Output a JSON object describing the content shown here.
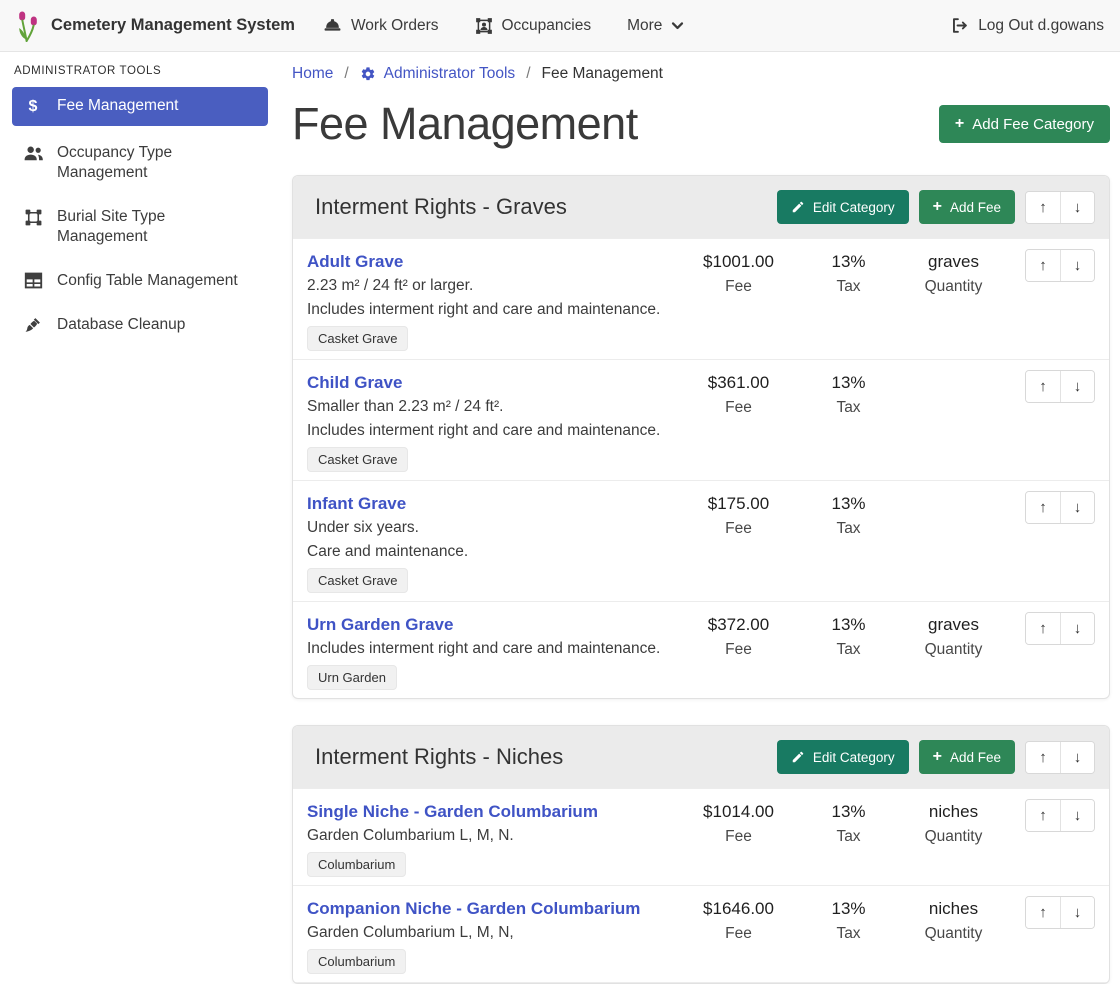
{
  "navbar": {
    "brand": "Cemetery Management System",
    "items": [
      {
        "label": "Work Orders",
        "icon": "hard-hat-icon"
      },
      {
        "label": "Occupancies",
        "icon": "occupant-frame-icon"
      },
      {
        "label": "More",
        "icon": "chevron-down-icon"
      }
    ],
    "logout": {
      "label": "Log Out d.gowans",
      "icon": "sign-out-icon"
    }
  },
  "sidebar": {
    "heading": "ADMINISTRATOR TOOLS",
    "items": [
      {
        "label": "Fee Management",
        "icon": "dollar-icon",
        "active": true
      },
      {
        "label": "Occupancy Type Management",
        "icon": "users-icon",
        "active": false
      },
      {
        "label": "Burial Site Type Management",
        "icon": "vector-square-icon",
        "active": false
      },
      {
        "label": "Config Table Management",
        "icon": "table-icon",
        "active": false
      },
      {
        "label": "Database Cleanup",
        "icon": "broom-icon",
        "active": false
      }
    ]
  },
  "breadcrumb": {
    "separator": "/",
    "items": [
      {
        "label": "Home",
        "icon": null
      },
      {
        "label": "Administrator Tools",
        "icon": "gear-icon"
      },
      {
        "label": "Fee Management",
        "icon": null
      }
    ]
  },
  "page": {
    "title": "Fee Management",
    "add_category_button": "Add Fee Category"
  },
  "labels": {
    "fee": "Fee",
    "tax": "Tax",
    "quantity": "Quantity"
  },
  "icons": {
    "plus": "+",
    "up_arrow": "↑",
    "down_arrow": "↓",
    "dollar": "$"
  },
  "colors": {
    "active_nav_blue": "#4a5ec0",
    "link_blue": "#3f53c5",
    "green_button": "#2e8757",
    "teal_button": "#187a62",
    "category_header_gray": "#ebebeb",
    "navbar_gray": "#f8f8f8"
  },
  "categories": [
    {
      "title": "Interment Rights - Graves",
      "edit_button": "Edit Category",
      "add_fee_button": "Add Fee",
      "fees": [
        {
          "name": "Adult Grave",
          "desc_lines": [
            "2.23 m² / 24 ft² or larger.",
            "Includes interment right and care and maintenance."
          ],
          "badges": [
            "Casket Grave"
          ],
          "fee": "$1001.00",
          "tax": "13%",
          "quantity": "graves"
        },
        {
          "name": "Child Grave",
          "desc_lines": [
            "Smaller than 2.23 m² / 24 ft².",
            "Includes interment right and care and maintenance."
          ],
          "badges": [
            "Casket Grave"
          ],
          "fee": "$361.00",
          "tax": "13%",
          "quantity": null
        },
        {
          "name": "Infant Grave",
          "desc_lines": [
            "Under six years.",
            "Care and maintenance."
          ],
          "badges": [
            "Casket Grave"
          ],
          "fee": "$175.00",
          "tax": "13%",
          "quantity": null
        },
        {
          "name": "Urn Garden Grave",
          "desc_lines": [
            "Includes interment right and care and maintenance."
          ],
          "badges": [
            "Urn Garden"
          ],
          "fee": "$372.00",
          "tax": "13%",
          "quantity": "graves"
        }
      ]
    },
    {
      "title": "Interment Rights - Niches",
      "edit_button": "Edit Category",
      "add_fee_button": "Add Fee",
      "fees": [
        {
          "name": "Single Niche - Garden Columbarium",
          "desc_lines": [
            "Garden Columbarium L, M, N."
          ],
          "badges": [
            "Columbarium"
          ],
          "fee": "$1014.00",
          "tax": "13%",
          "quantity": "niches"
        },
        {
          "name": "Companion Niche - Garden Columbarium",
          "desc_lines": [
            "Garden Columbarium L, M, N,"
          ],
          "badges": [
            "Columbarium"
          ],
          "fee": "$1646.00",
          "tax": "13%",
          "quantity": "niches"
        }
      ]
    }
  ]
}
